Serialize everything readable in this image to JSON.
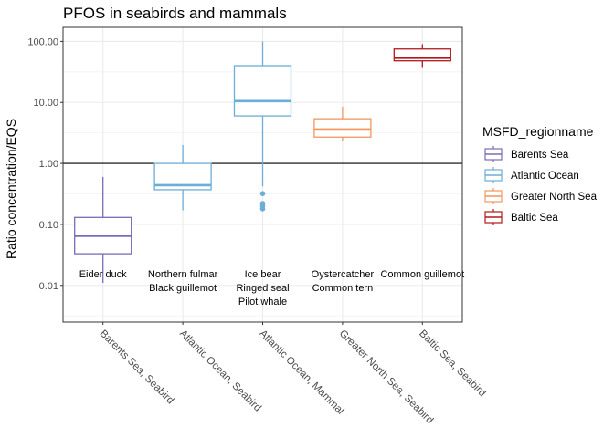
{
  "chart_data": {
    "type": "box",
    "title": "PFOS in seabirds and mammals",
    "xlabel": "",
    "ylabel": "Ratio concentration/EQS",
    "y_scale": "log10",
    "ylim": [
      0.0025,
      170
    ],
    "y_ticks": [
      {
        "value": 0.01,
        "label": "0.01"
      },
      {
        "value": 0.1,
        "label": "0.10"
      },
      {
        "value": 1,
        "label": "1.00"
      },
      {
        "value": 10,
        "label": "10.00"
      },
      {
        "value": 100,
        "label": "100.00"
      }
    ],
    "reference_line": 1,
    "grid": true,
    "legend": {
      "title": "MSFD_regionname",
      "position": "right",
      "items": [
        {
          "label": "Barents Sea",
          "color": "#7b6bb8"
        },
        {
          "label": "Atlantic Ocean",
          "color": "#6baed6"
        },
        {
          "label": "Greater North Sea",
          "color": "#f4955f"
        },
        {
          "label": "Baltic Sea",
          "color": "#b2181b"
        }
      ]
    },
    "categories": [
      "Barents Sea, Seabird",
      "Atlantic Ocean, Seabird",
      "Atlantic Ocean, Mammal",
      "Greater North Sea, Seabird",
      "Baltic Sea, Seabird"
    ],
    "boxes": [
      {
        "category": "Barents Sea, Seabird",
        "region": "Barents Sea",
        "min": 0.011,
        "q1": 0.033,
        "median": 0.065,
        "q3": 0.13,
        "max": 0.6,
        "outliers": [],
        "species": [
          "Eider duck"
        ]
      },
      {
        "category": "Atlantic Ocean, Seabird",
        "region": "Atlantic Ocean",
        "min": 0.17,
        "q1": 0.37,
        "median": 0.44,
        "q3": 1.0,
        "max": 2.0,
        "outliers": [],
        "species": [
          "Northern fulmar",
          "Black guillemot"
        ]
      },
      {
        "category": "Atlantic Ocean, Mammal",
        "region": "Atlantic Ocean",
        "min": 0.42,
        "q1": 6.0,
        "median": 10.5,
        "q3": 40,
        "max": 100,
        "outliers": [
          0.18,
          0.2,
          0.22,
          0.32
        ],
        "species": [
          "Ice bear",
          "Ringed seal",
          "Pilot whale"
        ]
      },
      {
        "category": "Greater North Sea, Seabird",
        "region": "Greater North Sea",
        "min": 2.3,
        "q1": 2.7,
        "median": 3.6,
        "q3": 5.4,
        "max": 8.5,
        "outliers": [],
        "species": [
          "Oystercatcher",
          "Common tern"
        ]
      },
      {
        "category": "Baltic Sea, Seabird",
        "region": "Baltic Sea",
        "min": 38,
        "q1": 48,
        "median": 54,
        "q3": 75,
        "max": 90,
        "outliers": [],
        "species": [
          "Common guillemot"
        ]
      }
    ]
  }
}
